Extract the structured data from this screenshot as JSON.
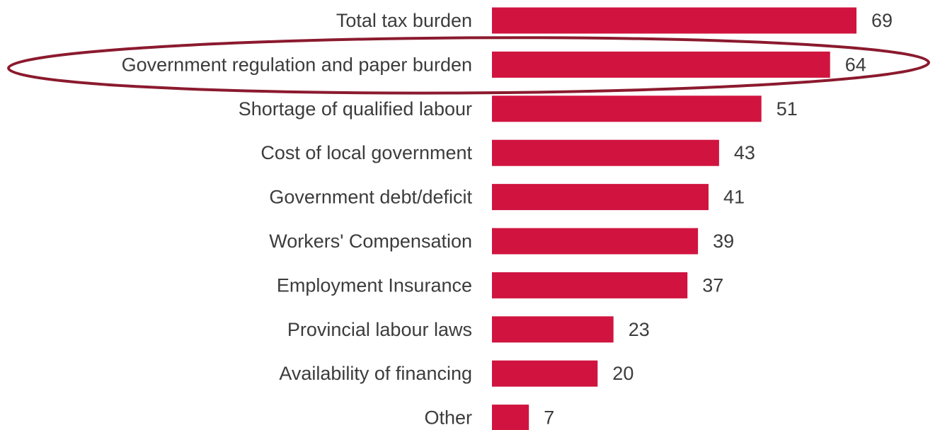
{
  "chart_data": {
    "type": "bar",
    "orientation": "horizontal",
    "categories": [
      "Total tax burden",
      "Government regulation and paper burden",
      "Shortage of qualified labour",
      "Cost of local government",
      "Government debt/deficit",
      "Workers' Compensation",
      "Employment Insurance",
      "Provincial labour laws",
      "Availability of financing",
      "Other"
    ],
    "values": [
      69,
      64,
      51,
      43,
      41,
      39,
      37,
      23,
      20,
      7
    ],
    "value_labels": [
      "69",
      "64",
      "51",
      "43",
      "41",
      "39",
      "37",
      "23",
      "20",
      "7"
    ],
    "xlim": [
      0,
      69
    ],
    "bar_color": "#d0143f",
    "highlight": {
      "category": "Government regulation and paper burden",
      "shape": "ellipse",
      "color": "#8b1a2e"
    }
  }
}
